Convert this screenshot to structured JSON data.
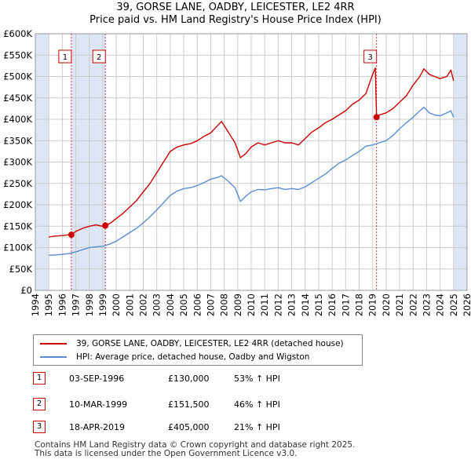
{
  "title": {
    "line1": "39, GORSE LANE, OADBY, LEICESTER, LE2 4RR",
    "line2": "Price paid vs. HM Land Registry's House Price Index (HPI)"
  },
  "legend": {
    "property_label": "39, GORSE LANE, OADBY, LEICESTER, LE2 4RR (detached house)",
    "hpi_label": "HPI: Average price, detached house, Oadby and Wigston"
  },
  "sales": [
    {
      "num": "1",
      "date": "03-SEP-1996",
      "price": "£130,000",
      "hpi_change": "53% ↑ HPI"
    },
    {
      "num": "2",
      "date": "10-MAR-1999",
      "price": "£151,500",
      "hpi_change": "46% ↑ HPI"
    },
    {
      "num": "3",
      "date": "18-APR-2019",
      "price": "£405,000",
      "hpi_change": "21% ↑ HPI"
    }
  ],
  "footer": {
    "line1": "Contains HM Land Registry data © Crown copyright and database right 2025.",
    "line2": "This data is licensed under the Open Government Licence v3.0."
  },
  "colors": {
    "property": "#cc0000",
    "hpi": "#5a8ed0",
    "shade": "#dde6f5",
    "grid": "#cccccc"
  },
  "chart_data": {
    "type": "line",
    "xlim": [
      1994,
      2026
    ],
    "ylim": [
      0,
      600000
    ],
    "x_ticks": [
      "1994",
      "1995",
      "1996",
      "1997",
      "1998",
      "1999",
      "2000",
      "2001",
      "2002",
      "2003",
      "2004",
      "2005",
      "2006",
      "2007",
      "2008",
      "2009",
      "2010",
      "2011",
      "2012",
      "2013",
      "2014",
      "2015",
      "2016",
      "2017",
      "2018",
      "2019",
      "2020",
      "2021",
      "2022",
      "2023",
      "2024",
      "2025",
      "2026"
    ],
    "y_ticks": [
      {
        "value": 0,
        "label": "£0"
      },
      {
        "value": 50000,
        "label": "£50K"
      },
      {
        "value": 100000,
        "label": "£100K"
      },
      {
        "value": 150000,
        "label": "£150K"
      },
      {
        "value": 200000,
        "label": "£200K"
      },
      {
        "value": 250000,
        "label": "£250K"
      },
      {
        "value": 300000,
        "label": "£300K"
      },
      {
        "value": 350000,
        "label": "£350K"
      },
      {
        "value": 400000,
        "label": "£400K"
      },
      {
        "value": 450000,
        "label": "£450K"
      },
      {
        "value": 500000,
        "label": "£500K"
      },
      {
        "value": 550000,
        "label": "£550K"
      },
      {
        "value": 600000,
        "label": "£600K"
      }
    ],
    "shaded_ranges": [
      [
        1994,
        1995
      ],
      [
        1996.67,
        1999.19
      ],
      [
        2025,
        2026
      ]
    ],
    "series": [
      {
        "name": "39, GORSE LANE, OADBY, LEICESTER, LE2 4RR (detached house)",
        "x": [
          1995.0,
          1995.5,
          1996.0,
          1996.5,
          1996.67,
          1997.0,
          1997.5,
          1998.0,
          1998.5,
          1999.0,
          1999.19,
          1999.6,
          2000.0,
          2000.5,
          2001.0,
          2001.5,
          2002.0,
          2002.5,
          2003.0,
          2003.5,
          2004.0,
          2004.5,
          2005.0,
          2005.5,
          2006.0,
          2006.5,
          2007.0,
          2007.5,
          2007.8,
          2008.3,
          2008.8,
          2009.2,
          2009.6,
          2010.0,
          2010.5,
          2011.0,
          2011.5,
          2012.0,
          2012.5,
          2013.0,
          2013.5,
          2014.0,
          2014.5,
          2015.0,
          2015.5,
          2016.0,
          2016.5,
          2017.0,
          2017.5,
          2018.0,
          2018.5,
          2019.0,
          2019.2,
          2019.29,
          2019.5,
          2020.0,
          2020.5,
          2021.0,
          2021.5,
          2022.0,
          2022.5,
          2022.8,
          2023.2,
          2023.6,
          2024.0,
          2024.5,
          2024.8,
          2025.0
        ],
        "y": [
          125000,
          127000,
          128000,
          130000,
          130000,
          138000,
          145000,
          150000,
          153000,
          150000,
          151500,
          158000,
          168000,
          180000,
          195000,
          210000,
          230000,
          250000,
          275000,
          300000,
          325000,
          335000,
          340000,
          343000,
          350000,
          360000,
          368000,
          385000,
          395000,
          370000,
          345000,
          310000,
          320000,
          335000,
          345000,
          340000,
          345000,
          350000,
          345000,
          345000,
          340000,
          355000,
          370000,
          380000,
          392000,
          400000,
          410000,
          420000,
          435000,
          445000,
          460000,
          505000,
          520000,
          405000,
          410000,
          415000,
          425000,
          440000,
          455000,
          480000,
          500000,
          518000,
          505000,
          500000,
          495000,
          500000,
          515000,
          490000
        ]
      },
      {
        "name": "HPI: Average price, detached house, Oadby and Wigston",
        "x": [
          1995.0,
          1995.5,
          1996.0,
          1996.5,
          1997.0,
          1997.5,
          1998.0,
          1998.5,
          1999.0,
          1999.5,
          2000.0,
          2000.5,
          2001.0,
          2001.5,
          2002.0,
          2002.5,
          2003.0,
          2003.5,
          2004.0,
          2004.5,
          2005.0,
          2005.5,
          2006.0,
          2006.5,
          2007.0,
          2007.5,
          2007.8,
          2008.3,
          2008.8,
          2009.2,
          2009.6,
          2010.0,
          2010.5,
          2011.0,
          2011.5,
          2012.0,
          2012.5,
          2013.0,
          2013.5,
          2014.0,
          2014.5,
          2015.0,
          2015.5,
          2016.0,
          2016.5,
          2017.0,
          2017.5,
          2018.0,
          2018.5,
          2019.0,
          2019.5,
          2020.0,
          2020.5,
          2021.0,
          2021.5,
          2022.0,
          2022.5,
          2022.8,
          2023.2,
          2023.6,
          2024.0,
          2024.5,
          2024.8,
          2025.0
        ],
        "y": [
          82000,
          83000,
          84000,
          86000,
          90000,
          95000,
          100000,
          102000,
          103000,
          108000,
          115000,
          125000,
          135000,
          145000,
          158000,
          172000,
          188000,
          205000,
          222000,
          232000,
          238000,
          240000,
          245000,
          252000,
          260000,
          264000,
          268000,
          255000,
          240000,
          208000,
          220000,
          230000,
          236000,
          235000,
          238000,
          240000,
          236000,
          238000,
          236000,
          242000,
          252000,
          262000,
          272000,
          285000,
          297000,
          305000,
          315000,
          325000,
          337000,
          340000,
          345000,
          350000,
          362000,
          378000,
          392000,
          405000,
          420000,
          428000,
          415000,
          410000,
          408000,
          415000,
          420000,
          405000
        ]
      }
    ],
    "sale_points": [
      {
        "label": "1",
        "x": 1996.67,
        "y": 130000
      },
      {
        "label": "2",
        "x": 1999.19,
        "y": 151500
      },
      {
        "label": "3",
        "x": 2019.29,
        "y": 405000
      }
    ]
  }
}
